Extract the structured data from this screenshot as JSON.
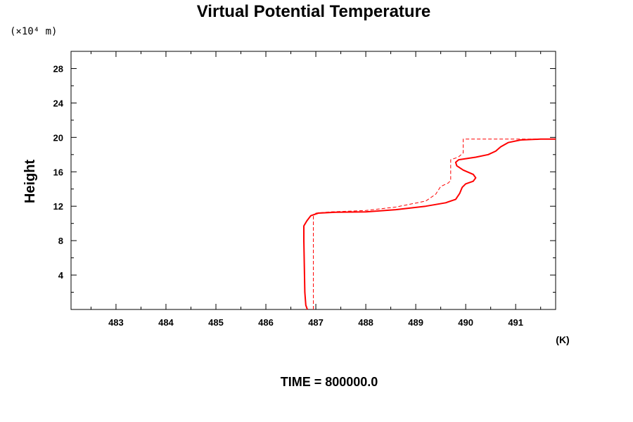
{
  "chart_data": {
    "type": "line",
    "title": "Virtual Potential Temperature",
    "y_units": "(×10⁴ m)",
    "ylabel": "Height",
    "xunit": "(K)",
    "footer": "TIME = 800000.0",
    "xlim": [
      482.1,
      491.8
    ],
    "ylim": [
      0,
      30
    ],
    "x_ticks": [
      483,
      484,
      485,
      486,
      487,
      488,
      489,
      490,
      491
    ],
    "x_tick_labels": [
      "483",
      "484",
      "485",
      "486",
      "487",
      "488",
      "489",
      "490",
      "491"
    ],
    "y_ticks": [
      4,
      8,
      12,
      16,
      20,
      24,
      28
    ],
    "y_tick_labels": [
      "4",
      "8",
      "12",
      "16",
      "20",
      "24",
      "28"
    ],
    "grid": false,
    "series": [
      {
        "style": "solid",
        "color": "#ff0000",
        "points": [
          [
            486.83,
            0.0
          ],
          [
            486.8,
            0.5
          ],
          [
            486.78,
            2.0
          ],
          [
            486.77,
            5.0
          ],
          [
            486.76,
            8.0
          ],
          [
            486.76,
            9.7
          ],
          [
            486.82,
            10.3
          ],
          [
            486.9,
            10.9
          ],
          [
            487.05,
            11.2
          ],
          [
            487.4,
            11.3
          ],
          [
            488.0,
            11.35
          ],
          [
            488.6,
            11.6
          ],
          [
            489.2,
            12.0
          ],
          [
            489.6,
            12.4
          ],
          [
            489.8,
            12.8
          ],
          [
            489.88,
            13.5
          ],
          [
            489.93,
            14.2
          ],
          [
            490.0,
            14.6
          ],
          [
            490.15,
            14.9
          ],
          [
            490.2,
            15.3
          ],
          [
            490.15,
            15.7
          ],
          [
            489.95,
            16.2
          ],
          [
            489.82,
            16.7
          ],
          [
            489.8,
            17.1
          ],
          [
            489.86,
            17.4
          ],
          [
            490.2,
            17.7
          ],
          [
            490.45,
            18.0
          ],
          [
            490.6,
            18.4
          ],
          [
            490.7,
            18.9
          ],
          [
            490.85,
            19.4
          ],
          [
            491.1,
            19.7
          ],
          [
            491.5,
            19.8
          ],
          [
            491.8,
            19.8
          ]
        ]
      },
      {
        "style": "dashed",
        "color": "#ff0000",
        "points": [
          [
            486.95,
            0.0
          ],
          [
            486.95,
            10.8
          ],
          [
            487.0,
            11.2
          ],
          [
            487.3,
            11.35
          ],
          [
            488.0,
            11.5
          ],
          [
            488.6,
            11.9
          ],
          [
            489.2,
            12.6
          ],
          [
            489.4,
            13.4
          ],
          [
            489.5,
            14.3
          ],
          [
            489.65,
            14.7
          ],
          [
            489.7,
            15.0
          ],
          [
            489.7,
            17.4
          ],
          [
            489.85,
            17.7
          ],
          [
            489.95,
            18.2
          ],
          [
            489.95,
            19.8
          ],
          [
            491.8,
            19.8
          ]
        ]
      }
    ]
  }
}
